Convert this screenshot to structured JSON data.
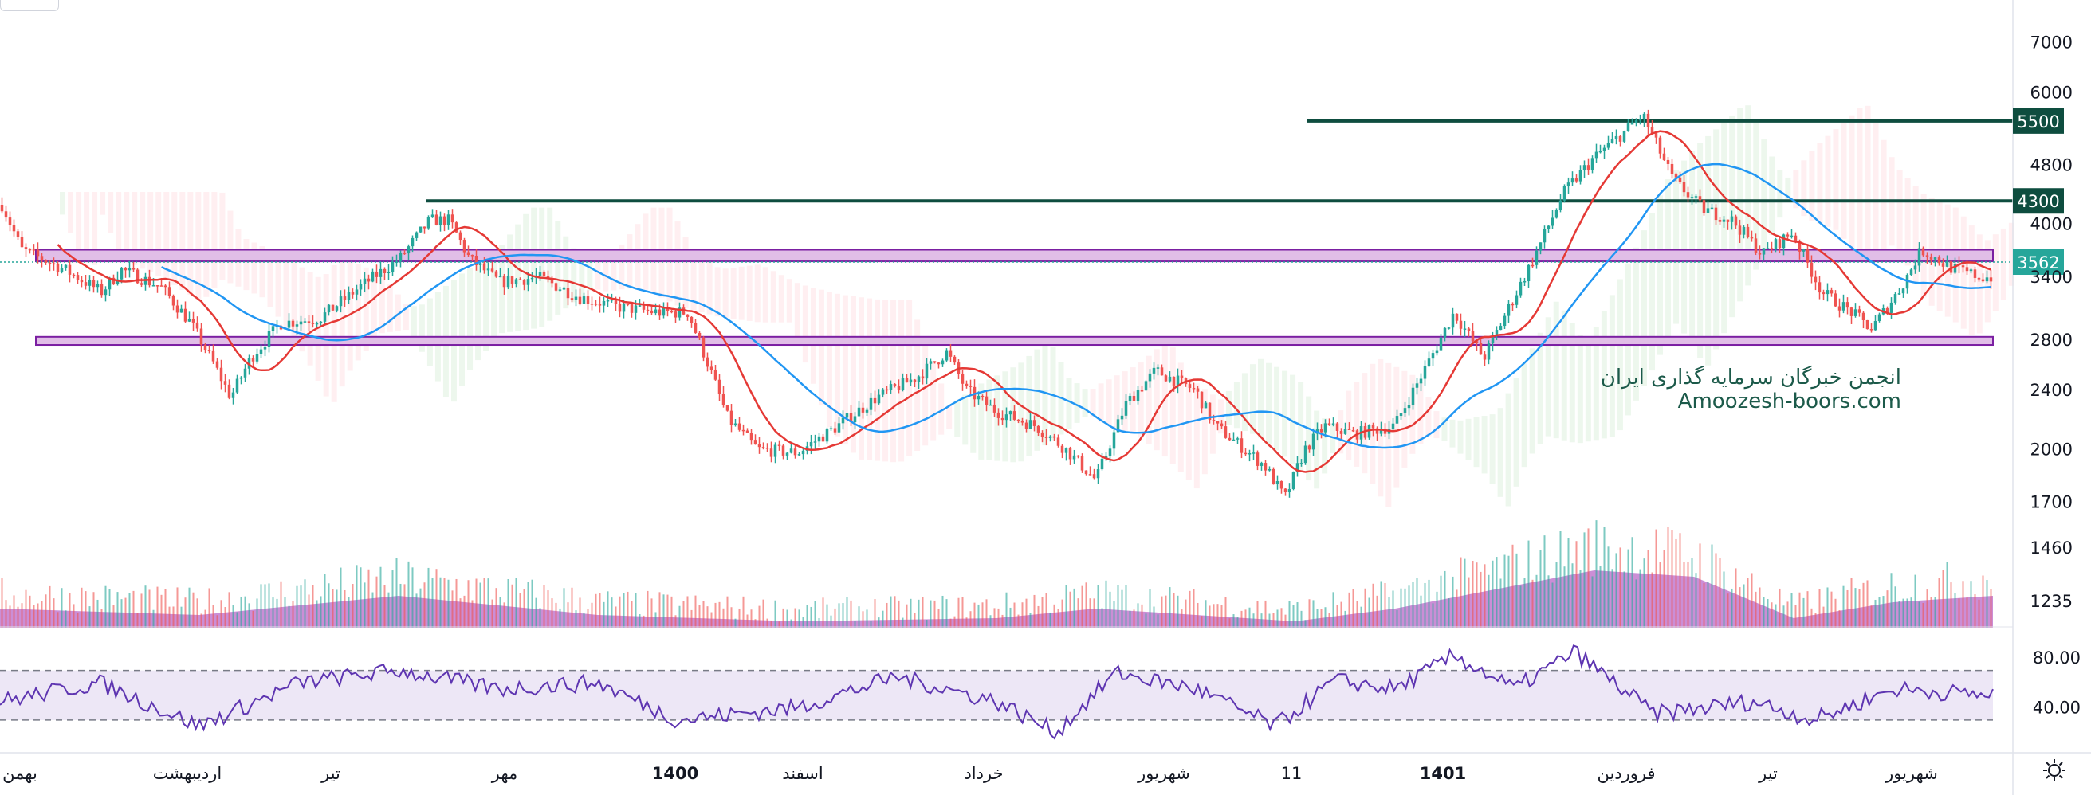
{
  "chart_data": {
    "type": "candlestick",
    "y_axis": {
      "scale": "log",
      "ticks": [
        "7000",
        "6000",
        "5500",
        "4800",
        "4300",
        "4000",
        "3562",
        "3400",
        "2800",
        "2400",
        "2000",
        "1700",
        "1460",
        "1235"
      ],
      "range": [
        1150,
        7600
      ]
    },
    "x_axis_labels": [
      "بهمن",
      "اردیبهشت",
      "تیر",
      "مهر",
      "1400",
      "اسفند",
      "خرداد",
      "شهریور",
      "11",
      "1401",
      "فروردین",
      "تیر",
      "شهریور"
    ],
    "x_axis_bold_labels": [
      "1400",
      "1401"
    ],
    "price_path": [
      [
        0,
        4250
      ],
      [
        0.01,
        3700
      ],
      [
        0.03,
        3500
      ],
      [
        0.05,
        3250
      ],
      [
        0.06,
        3480
      ],
      [
        0.08,
        3300
      ],
      [
        0.095,
        2950
      ],
      [
        0.105,
        2650
      ],
      [
        0.115,
        2350
      ],
      [
        0.125,
        2650
      ],
      [
        0.14,
        2950
      ],
      [
        0.16,
        3000
      ],
      [
        0.18,
        3300
      ],
      [
        0.2,
        3600
      ],
      [
        0.215,
        4050
      ],
      [
        0.225,
        4050
      ],
      [
        0.235,
        3600
      ],
      [
        0.25,
        3350
      ],
      [
        0.27,
        3400
      ],
      [
        0.29,
        3200
      ],
      [
        0.31,
        3100
      ],
      [
        0.33,
        3050
      ],
      [
        0.345,
        3050
      ],
      [
        0.355,
        2600
      ],
      [
        0.365,
        2200
      ],
      [
        0.38,
        2000
      ],
      [
        0.4,
        1980
      ],
      [
        0.42,
        2150
      ],
      [
        0.44,
        2350
      ],
      [
        0.46,
        2500
      ],
      [
        0.475,
        2700
      ],
      [
        0.485,
        2400
      ],
      [
        0.5,
        2250
      ],
      [
        0.52,
        2150
      ],
      [
        0.535,
        2000
      ],
      [
        0.55,
        1820
      ],
      [
        0.565,
        2300
      ],
      [
        0.58,
        2550
      ],
      [
        0.6,
        2400
      ],
      [
        0.61,
        2150
      ],
      [
        0.62,
        2050
      ],
      [
        0.635,
        1900
      ],
      [
        0.645,
        1720
      ],
      [
        0.655,
        2000
      ],
      [
        0.665,
        2150
      ],
      [
        0.68,
        2100
      ],
      [
        0.7,
        2150
      ],
      [
        0.715,
        2550
      ],
      [
        0.73,
        3050
      ],
      [
        0.745,
        2650
      ],
      [
        0.755,
        3000
      ],
      [
        0.77,
        3600
      ],
      [
        0.785,
        4400
      ],
      [
        0.8,
        4900
      ],
      [
        0.815,
        5300
      ],
      [
        0.825,
        5600
      ],
      [
        0.84,
        4600
      ],
      [
        0.855,
        4200
      ],
      [
        0.87,
        4050
      ],
      [
        0.885,
        3650
      ],
      [
        0.9,
        3900
      ],
      [
        0.915,
        3250
      ],
      [
        0.93,
        3050
      ],
      [
        0.94,
        2900
      ],
      [
        0.955,
        3300
      ],
      [
        0.965,
        3700
      ],
      [
        0.98,
        3500
      ],
      [
        0.995,
        3400
      ]
    ],
    "moving_averages": [
      {
        "color": "#e53935",
        "period": "short"
      },
      {
        "color": "#2196f3",
        "period": "long"
      }
    ],
    "horizontal_lines": [
      {
        "value": 5500,
        "label": "5500",
        "color": "#0e4d3f"
      },
      {
        "value": 4300,
        "label": "4300",
        "color": "#0e4d3f"
      }
    ],
    "zones": [
      {
        "from": 3570,
        "to": 3700,
        "color": "#e1bee7",
        "border": "#7b1fa2"
      },
      {
        "from": 2760,
        "to": 2830,
        "color": "#e1bee7",
        "border": "#7b1fa2"
      }
    ],
    "current_price": {
      "value": 3562,
      "label": "3562",
      "color": "#26a69a"
    },
    "volume": {
      "area_color": "#ba68c8",
      "up_color": "#26a69a",
      "down_color": "#ef5350",
      "profile": [
        [
          0,
          0.3
        ],
        [
          0.1,
          0.2
        ],
        [
          0.2,
          0.5
        ],
        [
          0.3,
          0.2
        ],
        [
          0.4,
          0.1
        ],
        [
          0.5,
          0.15
        ],
        [
          0.55,
          0.3
        ],
        [
          0.6,
          0.2
        ],
        [
          0.65,
          0.1
        ],
        [
          0.7,
          0.3
        ],
        [
          0.75,
          0.6
        ],
        [
          0.8,
          0.9
        ],
        [
          0.85,
          0.8
        ],
        [
          0.9,
          0.15
        ],
        [
          0.95,
          0.4
        ],
        [
          1,
          0.5
        ]
      ]
    },
    "rsi": {
      "ticks": [
        "80.00",
        "40.00"
      ],
      "upper": 70,
      "lower": 30,
      "band_color": "#ede7f6",
      "line_color": "#5e35b1",
      "profile": [
        [
          0,
          45
        ],
        [
          0.05,
          60
        ],
        [
          0.1,
          25
        ],
        [
          0.15,
          60
        ],
        [
          0.2,
          70
        ],
        [
          0.25,
          55
        ],
        [
          0.3,
          60
        ],
        [
          0.34,
          30
        ],
        [
          0.4,
          40
        ],
        [
          0.45,
          65
        ],
        [
          0.5,
          45
        ],
        [
          0.53,
          20
        ],
        [
          0.56,
          68
        ],
        [
          0.6,
          55
        ],
        [
          0.64,
          25
        ],
        [
          0.67,
          62
        ],
        [
          0.7,
          55
        ],
        [
          0.73,
          82
        ],
        [
          0.76,
          55
        ],
        [
          0.79,
          85
        ],
        [
          0.83,
          35
        ],
        [
          0.88,
          45
        ],
        [
          0.91,
          30
        ],
        [
          0.95,
          55
        ],
        [
          1,
          50
        ]
      ]
    }
  },
  "watermark": {
    "line1": "انجمن خبرگان سرمایه گذاری ایران",
    "line2": "Amoozesh-boors.com"
  },
  "icons": {
    "settings": "gear-icon"
  }
}
